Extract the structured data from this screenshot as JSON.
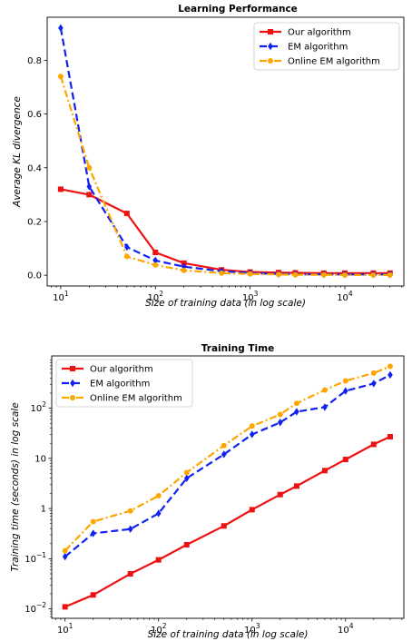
{
  "chart_data": [
    {
      "type": "line",
      "title": "Learning Performance",
      "xlabel": "Size of training data (in log scale)",
      "ylabel": "Average KL divergence",
      "xscale": "log",
      "yscale": "linear",
      "xlim": [
        7.2,
        42000
      ],
      "ylim": [
        -0.04,
        0.96
      ],
      "xticks": [
        10,
        100,
        1000,
        10000
      ],
      "xtick_labels": [
        {
          "base": "10",
          "exp": "1"
        },
        {
          "base": "10",
          "exp": "2"
        },
        {
          "base": "10",
          "exp": "3"
        },
        {
          "base": "10",
          "exp": "4"
        }
      ],
      "yticks": [
        0.0,
        0.2,
        0.4,
        0.6,
        0.8
      ],
      "ytick_labels": [
        "0.0",
        "0.2",
        "0.4",
        "0.6",
        "0.8"
      ],
      "legend_position": "top-right",
      "x": [
        10,
        20,
        50,
        100,
        200,
        500,
        1000,
        2000,
        3000,
        6000,
        10000,
        20000,
        30000
      ],
      "series": [
        {
          "name": "Our algorithm",
          "color": "#ee1111",
          "dash": "",
          "marker": "square",
          "values": [
            0.32,
            0.3,
            0.23,
            0.085,
            0.045,
            0.02,
            0.012,
            0.01,
            0.009,
            0.008,
            0.008,
            0.008,
            0.008
          ]
        },
        {
          "name": "EM algorithm",
          "color": "#1122ee",
          "dash": "8,4",
          "marker": "diamond",
          "values": [
            0.92,
            0.33,
            0.105,
            0.055,
            0.032,
            0.015,
            0.008,
            0.005,
            0.004,
            0.003,
            0.003,
            0.003,
            0.003
          ]
        },
        {
          "name": "Online EM algorithm",
          "color": "#ffa500",
          "dash": "8,3,2,3",
          "marker": "circle",
          "values": [
            0.74,
            0.4,
            0.07,
            0.038,
            0.018,
            0.008,
            0.005,
            0.003,
            0.002,
            0.002,
            0.001,
            0.001,
            0.001
          ]
        }
      ]
    },
    {
      "type": "line",
      "title": "Training Time",
      "xlabel": "Size of training data (in log scale)",
      "ylabel": "Training time (seconds) in log scale",
      "xscale": "log",
      "yscale": "log",
      "xlim": [
        7.2,
        42000
      ],
      "ylim": [
        0.0065,
        1100
      ],
      "xticks": [
        10,
        100,
        1000,
        10000
      ],
      "xtick_labels": [
        {
          "base": "10",
          "exp": "1"
        },
        {
          "base": "10",
          "exp": "2"
        },
        {
          "base": "10",
          "exp": "3"
        },
        {
          "base": "10",
          "exp": "4"
        }
      ],
      "yticks": [
        0.01,
        0.1,
        1,
        10,
        100
      ],
      "ytick_labels": [
        {
          "base": "10",
          "exp": "−2"
        },
        {
          "base": "10",
          "exp": "−1"
        },
        {
          "base": "1",
          "exp": ""
        },
        {
          "base": "10",
          "exp": ""
        },
        {
          "base": "10",
          "exp": "2"
        }
      ],
      "legend_position": "top-left",
      "x": [
        10,
        20,
        50,
        100,
        200,
        500,
        1000,
        2000,
        3000,
        6000,
        10000,
        20000,
        30000
      ],
      "series": [
        {
          "name": "Our algorithm",
          "color": "#ee1111",
          "dash": "",
          "marker": "square",
          "values": [
            0.011,
            0.019,
            0.05,
            0.095,
            0.19,
            0.45,
            0.95,
            1.9,
            2.8,
            5.7,
            9.5,
            19,
            27
          ]
        },
        {
          "name": "EM algorithm",
          "color": "#1122ee",
          "dash": "8,4",
          "marker": "diamond",
          "values": [
            0.11,
            0.32,
            0.39,
            0.8,
            4,
            12,
            30,
            52,
            85,
            105,
            220,
            310,
            460
          ]
        },
        {
          "name": "Online EM algorithm",
          "color": "#ffa500",
          "dash": "8,3,2,3",
          "marker": "circle",
          "values": [
            0.145,
            0.55,
            0.9,
            1.8,
            5.2,
            18,
            44,
            75,
            125,
            230,
            350,
            500,
            680
          ]
        }
      ]
    }
  ]
}
